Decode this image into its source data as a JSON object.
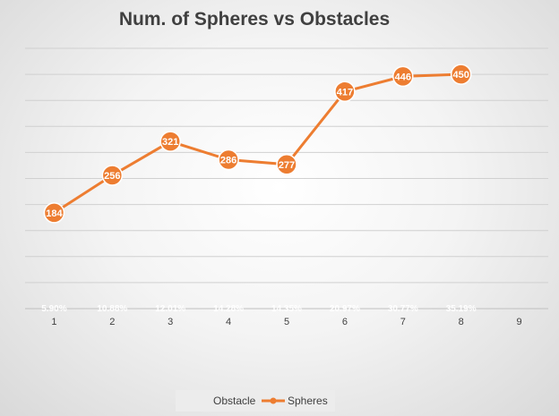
{
  "chart_data": {
    "type": "line",
    "title": "Num. of Spheres vs Obstacles",
    "categories": [
      "1",
      "2",
      "3",
      "4",
      "5",
      "6",
      "7",
      "8",
      "9"
    ],
    "series": [
      {
        "name": "Obstacle",
        "type": "bar",
        "values": [
          5.9,
          10.88,
          12.01,
          14.28,
          14.35,
          20.97,
          30.77,
          35.19,
          null
        ],
        "data_labels": [
          "5.90%",
          "10.88%",
          "12.01%",
          "14.28%",
          "14.35%",
          "20.97%",
          "30.77%",
          "35.19%",
          ""
        ],
        "color": "#bfbfbf"
      },
      {
        "name": "Spheres",
        "type": "line",
        "values": [
          184,
          256,
          321,
          286,
          277,
          417,
          446,
          450,
          null
        ],
        "color": "#ed7d31"
      }
    ],
    "ylim": [
      0,
      500
    ],
    "grid": true,
    "legend": "bottom"
  }
}
